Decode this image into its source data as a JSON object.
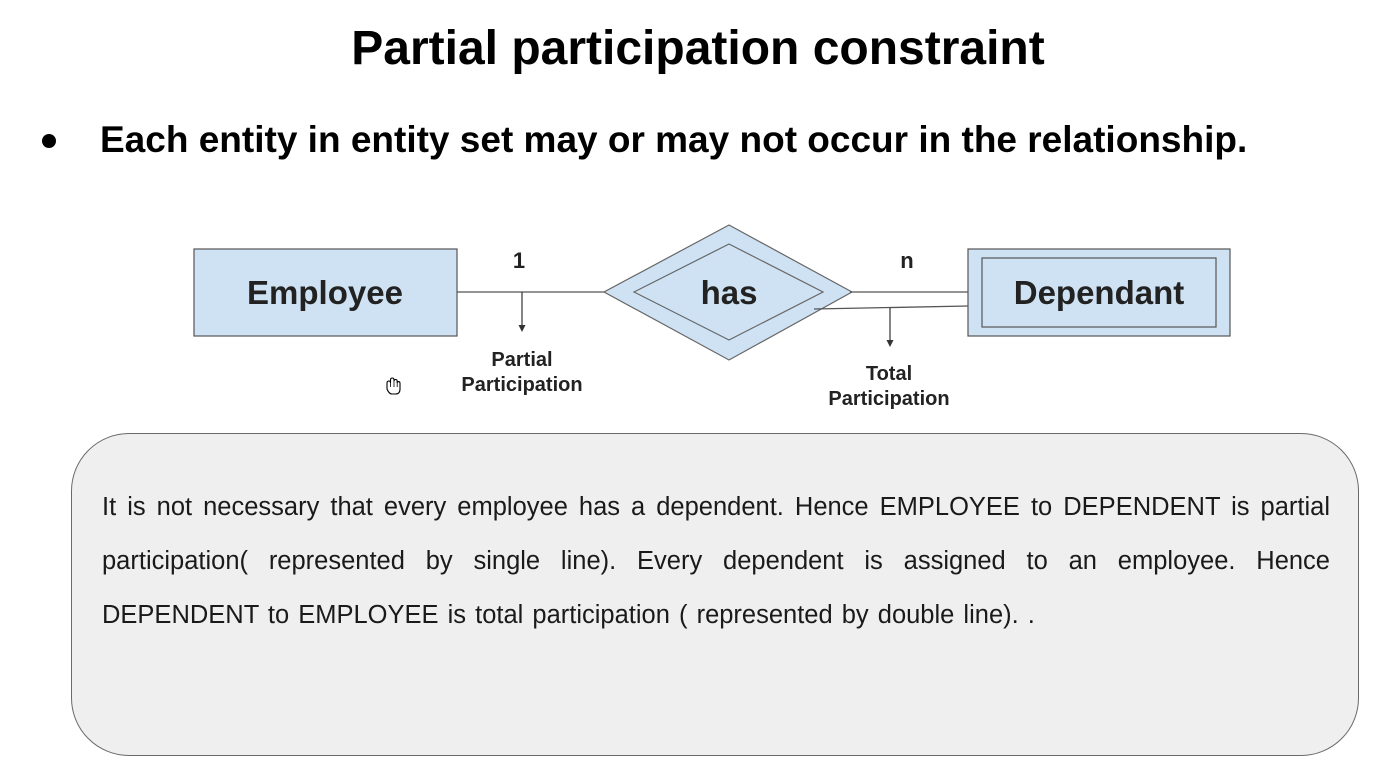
{
  "title": "Partial participation constraint",
  "bullet": "Each entity in entity set may or may not occur in the relationship.",
  "diagram": {
    "entity_left": "Employee",
    "relationship": "has",
    "entity_right": "Dependant",
    "cardinality_left": "1",
    "cardinality_right": "n",
    "partial_label_line1": "Partial",
    "partial_label_line2": "Participation",
    "total_label_line1": "Total",
    "total_label_line2": "Participation"
  },
  "note": "It is not necessary that every employee has a dependent. Hence EMPLOYEE to DEPENDENT is partial participation( represented by single line). Every dependent is assigned to an employee. Hence DEPENDENT to EMPLOYEE is total participation ( represented by double line). .",
  "colors": {
    "entity_fill": "#cfe2f3",
    "box_fill": "#efefef"
  },
  "icons": {
    "cursor": "hand-cursor-icon"
  }
}
